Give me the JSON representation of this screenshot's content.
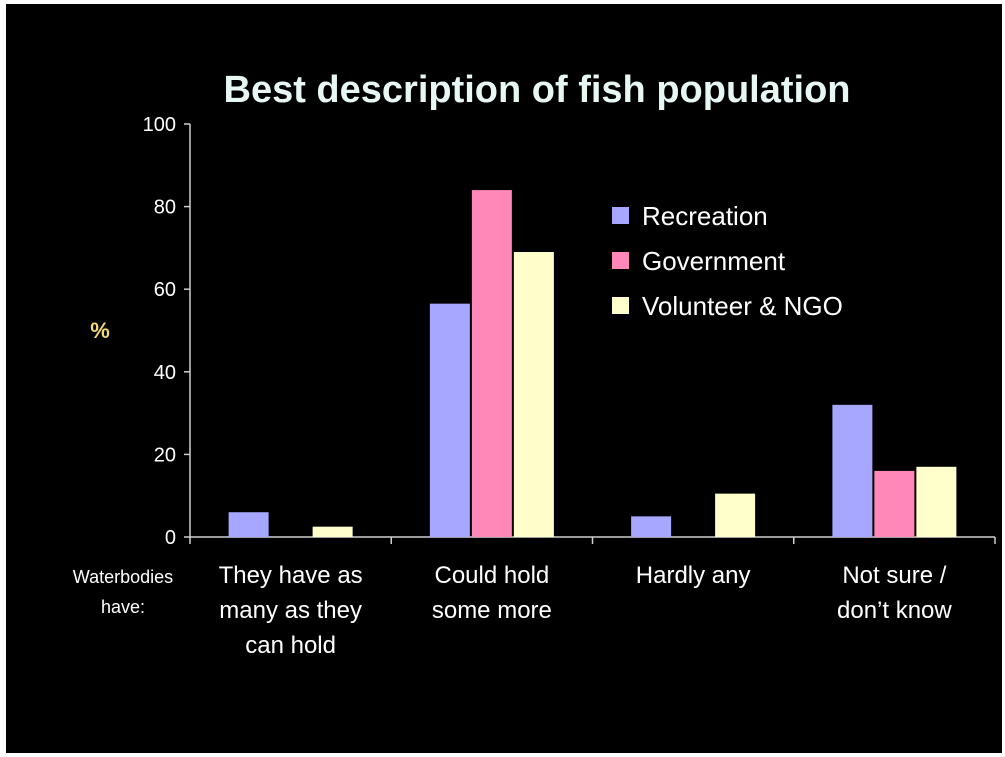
{
  "chart_data": {
    "type": "bar",
    "title": "Best description of fish population",
    "ylabel": "%",
    "xlabel_prefix": [
      "Waterbodies",
      "have:"
    ],
    "categories": [
      [
        "They have as",
        "many as they",
        "can hold"
      ],
      [
        "Could hold",
        "some more"
      ],
      [
        "Hardly any"
      ],
      [
        "Not sure /",
        "don’t know"
      ]
    ],
    "series": [
      {
        "name": "Recreation",
        "color": "#a7a7ff",
        "values": [
          6,
          56.5,
          5,
          32
        ]
      },
      {
        "name": "Government",
        "color": "#ff88b8",
        "values": [
          0,
          84,
          0,
          16
        ]
      },
      {
        "name": "Volunteer & NGO",
        "color": "#ffffcc",
        "values": [
          2.5,
          69,
          10.5,
          17
        ]
      }
    ],
    "ylim": [
      0,
      100
    ],
    "yticks": [
      "0",
      "20",
      "40",
      "60",
      "80",
      "100"
    ],
    "legend_position": "top-right",
    "grid": false
  }
}
